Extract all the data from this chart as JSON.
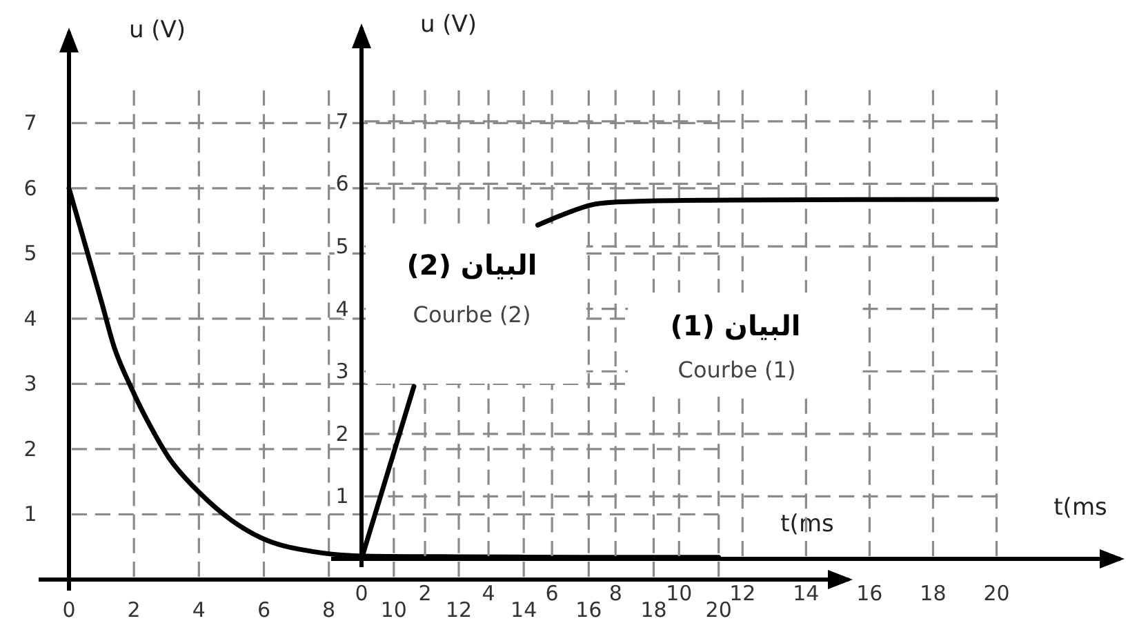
{
  "chart_data": [
    {
      "type": "line",
      "xlabel": "t(ms",
      "ylabel": "u (V)",
      "x": [
        0,
        1,
        1.4,
        1.9,
        2.4,
        3.1,
        4,
        5,
        6.1,
        7.5,
        9.1,
        12,
        16,
        20
      ],
      "series": [
        {
          "color": "#000000",
          "values": [
            6,
            4.26,
            3.55,
            2.96,
            2.45,
            1.85,
            1.34,
            0.91,
            0.6,
            0.43,
            0.36,
            0.35,
            0.34,
            0.34
          ]
        }
      ],
      "xlim": [
        0,
        24
      ],
      "ylim": [
        0,
        8.4
      ],
      "xticks": [
        0,
        2,
        4,
        6,
        8,
        10,
        12,
        14,
        16,
        18,
        20
      ],
      "yticks": [
        1,
        2,
        3,
        4,
        5,
        6,
        7
      ],
      "grid": true
    },
    {
      "type": "line",
      "xlabel": "t(ms",
      "ylabel": "u (V)",
      "series": [
        {
          "color": "#000000",
          "x": [
            0,
            1.65
          ],
          "values": [
            0,
            2.76
          ]
        },
        {
          "color": "#000000",
          "x": [
            5.55,
            6.4,
            7.3,
            8.7,
            11.6,
            20
          ],
          "values": [
            5.34,
            5.52,
            5.67,
            5.72,
            5.74,
            5.75
          ]
        }
      ],
      "xlim": [
        0,
        23.9
      ],
      "ylim": [
        0,
        8.5
      ],
      "xticks": [
        0,
        2,
        4,
        6,
        8,
        10,
        12,
        14,
        16,
        18,
        20
      ],
      "yticks": [
        1,
        2,
        3,
        4,
        5,
        6,
        7
      ],
      "grid": true,
      "annotations": [
        "البيان (2)",
        "Courbe (2)",
        "البيان (1)",
        "Courbe (1)"
      ]
    }
  ]
}
